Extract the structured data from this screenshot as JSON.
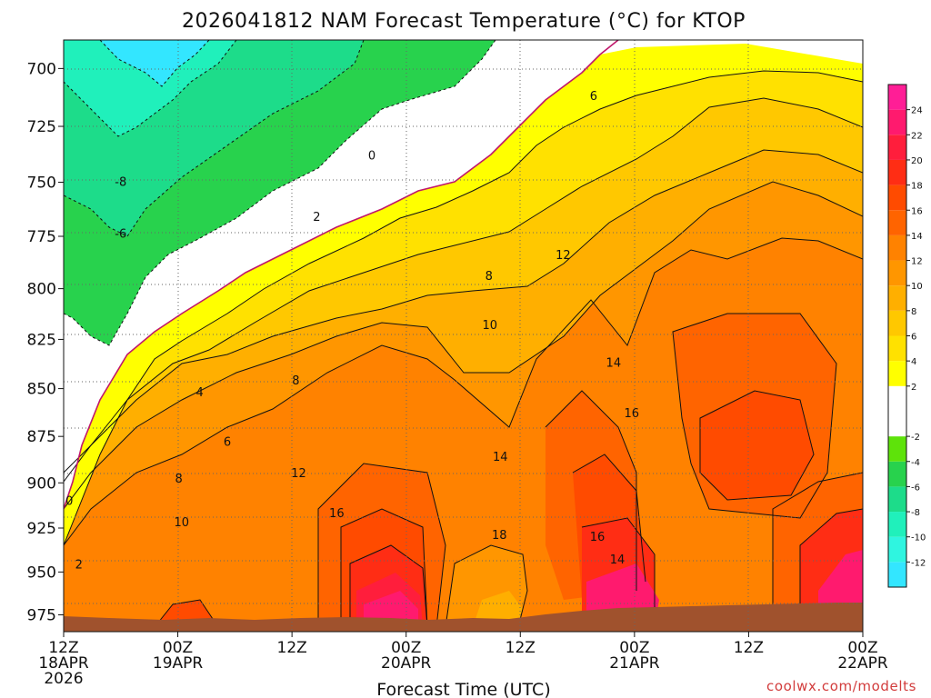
{
  "chart_data": {
    "type": "heatmap",
    "title": "2026041812 NAM Forecast Temperature (°C) for KTOP",
    "xlabel": "Forecast Time (UTC)",
    "ylabel": "",
    "y_ticks": [
      "700",
      "725",
      "750",
      "775",
      "800",
      "825",
      "850",
      "875",
      "900",
      "925",
      "950",
      "975"
    ],
    "y_range_hPa": [
      688,
      985
    ],
    "x_range_hours": [
      0,
      84
    ],
    "x_ticks": [
      {
        "line1": "12Z",
        "line2": "18APR",
        "line3": "2026",
        "hour": 0
      },
      {
        "line1": "00Z",
        "line2": "19APR",
        "line3": "",
        "hour": 12
      },
      {
        "line1": "12Z",
        "line2": "",
        "line3": "",
        "hour": 24
      },
      {
        "line1": "00Z",
        "line2": "20APR",
        "line3": "",
        "hour": 36
      },
      {
        "line1": "12Z",
        "line2": "",
        "line3": "",
        "hour": 48
      },
      {
        "line1": "00Z",
        "line2": "21APR",
        "line3": "",
        "hour": 60
      },
      {
        "line1": "12Z",
        "line2": "",
        "line3": "",
        "hour": 72
      },
      {
        "line1": "00Z",
        "line2": "22APR",
        "line3": "",
        "hour": 84
      }
    ],
    "colorbar": {
      "labels": [
        "24",
        "22",
        "20",
        "18",
        "16",
        "14",
        "12",
        "10",
        "8",
        "6",
        "4",
        "2",
        "-2",
        "-4",
        "-6",
        "-8",
        "-10",
        "-12"
      ],
      "bands": [
        {
          "lo": -14,
          "hi": -12,
          "color": "#33e6ff"
        },
        {
          "lo": -12,
          "hi": -10,
          "color": "#2ff5e0"
        },
        {
          "lo": -10,
          "hi": -8,
          "color": "#20f0bb"
        },
        {
          "lo": -8,
          "hi": -6,
          "color": "#1ddc8a"
        },
        {
          "lo": -6,
          "hi": -4,
          "color": "#28d24d"
        },
        {
          "lo": -4,
          "hi": -2,
          "color": "#5ee30a"
        },
        {
          "lo": -2,
          "hi": 2,
          "color": "#ffffff"
        },
        {
          "lo": 2,
          "hi": 4,
          "color": "#ffff00"
        },
        {
          "lo": 4,
          "hi": 6,
          "color": "#ffe100"
        },
        {
          "lo": 6,
          "hi": 8,
          "color": "#ffc800"
        },
        {
          "lo": 8,
          "hi": 10,
          "color": "#ffaf00"
        },
        {
          "lo": 10,
          "hi": 12,
          "color": "#ff9600"
        },
        {
          "lo": 12,
          "hi": 14,
          "color": "#ff8200"
        },
        {
          "lo": 14,
          "hi": 16,
          "color": "#ff6400"
        },
        {
          "lo": 16,
          "hi": 18,
          "color": "#ff4b00"
        },
        {
          "lo": 18,
          "hi": 20,
          "color": "#ff2d14"
        },
        {
          "lo": 20,
          "hi": 22,
          "color": "#ff1e3c"
        },
        {
          "lo": 22,
          "hi": 24,
          "color": "#ff1a6e"
        },
        {
          "lo": 24,
          "hi": 26,
          "color": "#ff1e96"
        }
      ]
    },
    "contour_labels": [
      {
        "text": "-8",
        "hour": 6,
        "p": 750
      },
      {
        "text": "-6",
        "hour": 6,
        "p": 774
      },
      {
        "text": "0",
        "hour": 0.6,
        "p": 910
      },
      {
        "text": "2",
        "hour": 1.6,
        "p": 946
      },
      {
        "text": "0",
        "hour": 32.4,
        "p": 738
      },
      {
        "text": "2",
        "hour": 26.6,
        "p": 766
      },
      {
        "text": "4",
        "hour": 14.3,
        "p": 852
      },
      {
        "text": "6",
        "hour": 17.2,
        "p": 878
      },
      {
        "text": "8",
        "hour": 12.1,
        "p": 898
      },
      {
        "text": "10",
        "hour": 12.4,
        "p": 922
      },
      {
        "text": "8",
        "hour": 24.4,
        "p": 846
      },
      {
        "text": "12",
        "hour": 24.7,
        "p": 895
      },
      {
        "text": "16",
        "hour": 28.7,
        "p": 917
      },
      {
        "text": "8",
        "hour": 44.7,
        "p": 794
      },
      {
        "text": "10",
        "hour": 44.8,
        "p": 818
      },
      {
        "text": "14",
        "hour": 45.9,
        "p": 886
      },
      {
        "text": "18",
        "hour": 45.8,
        "p": 929
      },
      {
        "text": "6",
        "hour": 55.7,
        "p": 712
      },
      {
        "text": "12",
        "hour": 52.5,
        "p": 784
      },
      {
        "text": "14",
        "hour": 57.8,
        "p": 837
      },
      {
        "text": "16",
        "hour": 59.7,
        "p": 863
      },
      {
        "text": "16",
        "hour": 56.1,
        "p": 930
      },
      {
        "text": "14",
        "hour": 58.2,
        "p": 943
      }
    ],
    "credit": "coolwx.com/modelts",
    "ground_color": "#a0522d",
    "freezing_line_color": "#c0176b"
  }
}
